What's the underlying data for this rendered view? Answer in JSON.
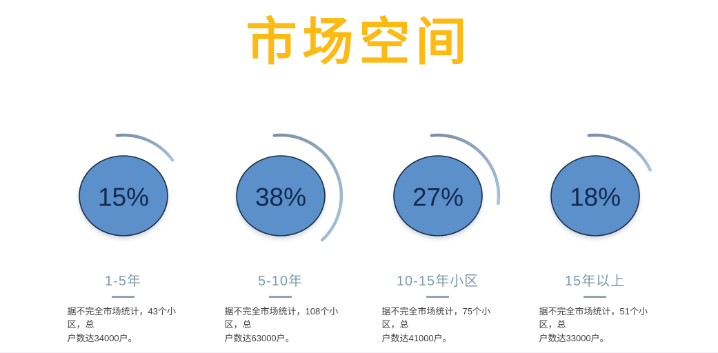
{
  "title": "市场空间",
  "colors": {
    "title": "#fcba12",
    "bubble_fill": "#5b90ca",
    "bubble_stroke": "#1c2e42",
    "percent_text": "#13294e",
    "arc_start": "#7b8fa6",
    "arc_end": "#a9c3dc",
    "label": "#7e9aab",
    "divider": "#9aa3ab",
    "description": "#404040"
  },
  "chart_data": {
    "type": "pie",
    "title": "市场空间",
    "categories": [
      "1-5年",
      "5-10年",
      "10-15年小区",
      "15年以上"
    ],
    "values": [
      15,
      38,
      27,
      18
    ],
    "unit": "%",
    "style": "four separate bubbles, each with a clockwise arc from top proportional to its percentage",
    "annotations": [
      "据不完全市场统计，43个小区，总户数达34000户。",
      "据不完全市场统计，108个小区，总户数达63000户。",
      "据不完全市场统计，75个小区，总户数达41000户。",
      "据不完全市场统计，51个小区，总户数达33000户。"
    ]
  },
  "items": [
    {
      "percent": 15,
      "percent_label": "15%",
      "label": "1-5年",
      "communities": 43,
      "households": 34000,
      "description": "据不完全市场统计，43个小区，总\n户数达34000户。"
    },
    {
      "percent": 38,
      "percent_label": "38%",
      "label": "5-10年",
      "communities": 108,
      "households": 63000,
      "description": "据不完全市场统计，108个小区，总\n户数达63000户。"
    },
    {
      "percent": 27,
      "percent_label": "27%",
      "label": "10-15年小区",
      "communities": 75,
      "households": 41000,
      "description": "据不完全市场统计，75个小区，总\n户数达41000户。"
    },
    {
      "percent": 18,
      "percent_label": "18%",
      "label": "15年以上",
      "communities": 51,
      "households": 33000,
      "description": "据不完全市场统计，51个小区，总\n户数达33000户。"
    }
  ]
}
